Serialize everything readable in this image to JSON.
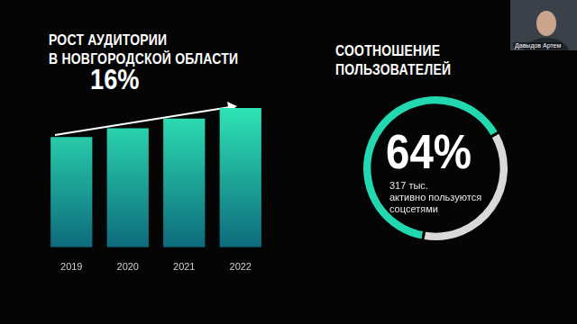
{
  "speaker": "Давыдов Артем",
  "chart_data": [
    {
      "type": "bar",
      "title": "РОСТ АУДИТОРИИ\nВ НОВГОРОДСКОЙ ОБЛАСТИ",
      "annotations": [
        "16%"
      ],
      "categories": [
        "2019",
        "2020",
        "2021",
        "2022"
      ],
      "values": [
        114,
        123,
        133,
        144
      ],
      "color": "#2fe3b5",
      "ylim": [
        0,
        144
      ],
      "grid": false,
      "tick_labels": "x"
    },
    {
      "type": "doughnut",
      "title": "СООТНОШЕНИЕ ПОЛЬЗОВАТЕЛЕЙ",
      "values": [
        64,
        36
      ],
      "colors": [
        "#22d8b0",
        "#d9d9d9"
      ],
      "annotations": [
        "64%",
        "317 тыс.\nактивно пользуются\nсоцсетями"
      ]
    }
  ]
}
